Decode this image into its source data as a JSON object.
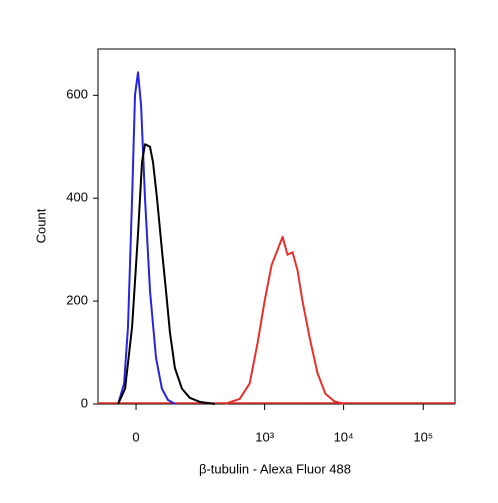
{
  "chart_data": {
    "type": "line",
    "x_label": "β-tubulin - Alexa Fluor 488",
    "y_label": "Count",
    "xscale": "biexponential",
    "xlim": [
      -50,
      250000
    ],
    "xticks": [
      0,
      {
        "value": 1000,
        "label": "10³"
      },
      {
        "value": 10000,
        "label": "10⁴"
      },
      {
        "value": 100000,
        "label": "10⁵"
      }
    ],
    "ylim": [
      0,
      690
    ],
    "yticks": [
      0,
      200,
      400,
      600
    ],
    "series": [
      {
        "color": "#2525e0",
        "x": [
          -17,
          -10.3,
          -6.5,
          -3.05,
          -0.73,
          1.47,
          3.9,
          7.4,
          12.4,
          19.5,
          27.8,
          37.8,
          51.8
        ],
        "values": [
          0,
          40,
          150,
          400,
          600,
          645,
          580,
          400,
          220,
          90,
          30,
          8,
          0
        ]
      },
      {
        "color": "#000000",
        "x": [
          -17,
          -9.3,
          -3.05,
          1.47,
          4.7,
          7.4,
          12.4,
          15.8,
          20.8,
          27.8,
          34.3,
          41.5,
          51.8,
          69,
          93,
          133,
          218
        ],
        "values": [
          0,
          30,
          150,
          330,
          470,
          505,
          500,
          470,
          400,
          300,
          220,
          140,
          70,
          30,
          12,
          4,
          0
        ]
      },
      {
        "color": "#e8302a",
        "x": [
          299,
          474,
          640,
          813,
          1000,
          1228,
          1465,
          1695,
          1960,
          2268,
          2623,
          3033,
          3716,
          4685,
          5903,
          7660,
          10225
        ],
        "values": [
          0,
          10,
          40,
          120,
          200,
          270,
          300,
          325,
          290,
          295,
          260,
          200,
          130,
          60,
          20,
          5,
          0
        ]
      }
    ]
  }
}
